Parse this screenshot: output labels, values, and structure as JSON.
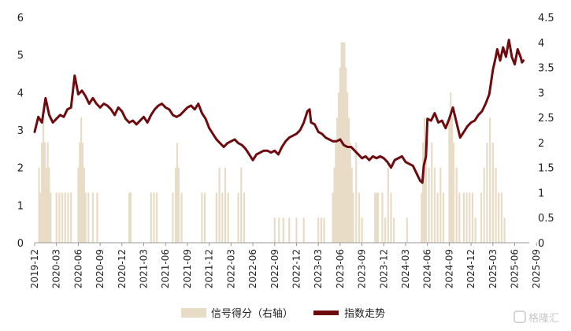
{
  "chart_data": {
    "type": "bar+line",
    "title": "",
    "x_categories": [
      "2019-12",
      "2020-03",
      "2020-06",
      "2020-09",
      "2020-12",
      "2021-03",
      "2021-06",
      "2021-09",
      "2021-12",
      "2022-03",
      "2022-06",
      "2022-09",
      "2022-12",
      "2023-03",
      "2023-06",
      "2023-09",
      "2023-12",
      "2024-03",
      "2024-06",
      "2024-09",
      "2024-12",
      "2025-03",
      "2025-06",
      "2025-09"
    ],
    "left_axis": {
      "ticks": [
        "0",
        "1",
        "2",
        "3",
        "4",
        "5",
        "6"
      ],
      "range": [
        0,
        6
      ]
    },
    "right_axis": {
      "ticks": [
        "0",
        "0.5",
        "1",
        "1.5",
        "2",
        "2.5",
        "3",
        "3.5",
        "4",
        "4.5"
      ],
      "range": [
        0,
        4.5
      ]
    },
    "series": [
      {
        "name": "信号得分（右轴）",
        "type": "bar",
        "axis": "right",
        "color": "#e8dcc6",
        "t_unit": "months since 2019-12",
        "points": [
          [
            0.6,
            1.5
          ],
          [
            0.8,
            1.0
          ],
          [
            1.0,
            2.0
          ],
          [
            1.2,
            2.5
          ],
          [
            1.4,
            2.0
          ],
          [
            1.6,
            1.5
          ],
          [
            1.8,
            2.0
          ],
          [
            2.0,
            1.5
          ],
          [
            2.2,
            1.0
          ],
          [
            3.0,
            1.0
          ],
          [
            3.4,
            1.0
          ],
          [
            3.8,
            1.0
          ],
          [
            4.2,
            1.0
          ],
          [
            4.6,
            1.0
          ],
          [
            5.0,
            1.0
          ],
          [
            6.0,
            1.5
          ],
          [
            6.2,
            2.0
          ],
          [
            6.4,
            2.5
          ],
          [
            6.6,
            2.0
          ],
          [
            6.8,
            1.5
          ],
          [
            7.0,
            1.0
          ],
          [
            7.4,
            1.0
          ],
          [
            8.0,
            1.0
          ],
          [
            8.6,
            1.0
          ],
          [
            13.0,
            1.0
          ],
          [
            13.2,
            1.0
          ],
          [
            16.0,
            1.0
          ],
          [
            16.4,
            1.0
          ],
          [
            16.8,
            1.0
          ],
          [
            19.0,
            1.0
          ],
          [
            19.4,
            1.5
          ],
          [
            19.6,
            2.0
          ],
          [
            19.8,
            1.5
          ],
          [
            20.2,
            1.0
          ],
          [
            23.0,
            1.0
          ],
          [
            23.4,
            1.0
          ],
          [
            25.0,
            1.0
          ],
          [
            25.4,
            1.5
          ],
          [
            25.8,
            1.0
          ],
          [
            26.2,
            1.5
          ],
          [
            26.6,
            1.0
          ],
          [
            28.0,
            1.0
          ],
          [
            28.4,
            1.5
          ],
          [
            28.8,
            1.0
          ],
          [
            33.0,
            0.5
          ],
          [
            33.6,
            0.5
          ],
          [
            34.2,
            0.5
          ],
          [
            35.0,
            0.5
          ],
          [
            36.0,
            0.5
          ],
          [
            37.0,
            0.5
          ],
          [
            39.0,
            0.5
          ],
          [
            39.4,
            0.5
          ],
          [
            39.8,
            0.5
          ],
          [
            41.0,
            1.0
          ],
          [
            41.2,
            1.5
          ],
          [
            41.4,
            2.0
          ],
          [
            41.6,
            2.5
          ],
          [
            41.8,
            3.0
          ],
          [
            42.0,
            3.5
          ],
          [
            42.2,
            4.0
          ],
          [
            42.4,
            4.0
          ],
          [
            42.6,
            4.0
          ],
          [
            42.8,
            3.5
          ],
          [
            43.0,
            3.0
          ],
          [
            43.2,
            2.5
          ],
          [
            43.4,
            2.0
          ],
          [
            43.6,
            1.5
          ],
          [
            43.8,
            1.0
          ],
          [
            44.2,
            2.0
          ],
          [
            44.6,
            1.0
          ],
          [
            45.0,
            0.5
          ],
          [
            46.8,
            1.0
          ],
          [
            47.0,
            1.0
          ],
          [
            47.2,
            1.0
          ],
          [
            47.8,
            1.0
          ],
          [
            48.2,
            0.5
          ],
          [
            48.6,
            1.5
          ],
          [
            49.0,
            1.0
          ],
          [
            49.4,
            0.5
          ],
          [
            51.2,
            0.5
          ],
          [
            53.2,
            1.0
          ],
          [
            53.4,
            2.0
          ],
          [
            53.6,
            2.5
          ],
          [
            53.8,
            2.0
          ],
          [
            54.2,
            1.5
          ],
          [
            54.6,
            2.0
          ],
          [
            55.0,
            1.5
          ],
          [
            55.4,
            1.0
          ],
          [
            55.8,
            1.5
          ],
          [
            56.2,
            1.0
          ],
          [
            57.0,
            2.5
          ],
          [
            57.2,
            3.0
          ],
          [
            57.4,
            2.5
          ],
          [
            57.6,
            2.0
          ],
          [
            58.0,
            1.5
          ],
          [
            58.4,
            1.0
          ],
          [
            59.0,
            1.0
          ],
          [
            59.4,
            1.0
          ],
          [
            59.8,
            1.0
          ],
          [
            60.2,
            1.0
          ],
          [
            60.6,
            0.5
          ],
          [
            61.4,
            1.0
          ],
          [
            61.8,
            1.5
          ],
          [
            62.2,
            2.0
          ],
          [
            62.6,
            2.5
          ],
          [
            63.0,
            2.0
          ],
          [
            63.4,
            1.5
          ],
          [
            63.8,
            1.0
          ],
          [
            64.2,
            1.0
          ],
          [
            64.6,
            0.5
          ]
        ]
      },
      {
        "name": "指数走势",
        "type": "line",
        "axis": "left",
        "color": "#6e0b0e",
        "t_unit": "months since 2019-12",
        "points": [
          [
            0,
            2.95
          ],
          [
            0.5,
            3.35
          ],
          [
            1.0,
            3.2
          ],
          [
            1.5,
            3.85
          ],
          [
            2.0,
            3.4
          ],
          [
            2.5,
            3.2
          ],
          [
            3.0,
            3.3
          ],
          [
            3.5,
            3.4
          ],
          [
            4.0,
            3.35
          ],
          [
            4.5,
            3.55
          ],
          [
            5.0,
            3.6
          ],
          [
            5.5,
            4.45
          ],
          [
            6.0,
            3.95
          ],
          [
            6.5,
            4.05
          ],
          [
            7.0,
            3.9
          ],
          [
            7.5,
            3.7
          ],
          [
            8.0,
            3.85
          ],
          [
            8.5,
            3.7
          ],
          [
            9.0,
            3.6
          ],
          [
            9.5,
            3.7
          ],
          [
            10.0,
            3.65
          ],
          [
            10.5,
            3.55
          ],
          [
            11.0,
            3.4
          ],
          [
            11.5,
            3.6
          ],
          [
            12.0,
            3.5
          ],
          [
            12.5,
            3.3
          ],
          [
            13.0,
            3.2
          ],
          [
            13.5,
            3.25
          ],
          [
            14.0,
            3.15
          ],
          [
            14.5,
            3.25
          ],
          [
            15.0,
            3.35
          ],
          [
            15.5,
            3.2
          ],
          [
            16.0,
            3.4
          ],
          [
            16.5,
            3.55
          ],
          [
            17.0,
            3.65
          ],
          [
            17.5,
            3.7
          ],
          [
            18.0,
            3.6
          ],
          [
            18.5,
            3.55
          ],
          [
            19.0,
            3.4
          ],
          [
            19.5,
            3.35
          ],
          [
            20.0,
            3.4
          ],
          [
            20.5,
            3.5
          ],
          [
            21.0,
            3.6
          ],
          [
            21.5,
            3.65
          ],
          [
            22.0,
            3.55
          ],
          [
            22.5,
            3.7
          ],
          [
            23.0,
            3.45
          ],
          [
            23.5,
            3.3
          ],
          [
            24.0,
            3.05
          ],
          [
            24.5,
            2.9
          ],
          [
            25.0,
            2.75
          ],
          [
            25.5,
            2.65
          ],
          [
            26.0,
            2.55
          ],
          [
            26.5,
            2.65
          ],
          [
            27.0,
            2.7
          ],
          [
            27.5,
            2.75
          ],
          [
            28.0,
            2.65
          ],
          [
            28.5,
            2.6
          ],
          [
            29.0,
            2.5
          ],
          [
            29.5,
            2.35
          ],
          [
            30.0,
            2.2
          ],
          [
            30.5,
            2.35
          ],
          [
            31.0,
            2.4
          ],
          [
            31.5,
            2.45
          ],
          [
            32.0,
            2.45
          ],
          [
            32.5,
            2.4
          ],
          [
            33.0,
            2.45
          ],
          [
            33.5,
            2.35
          ],
          [
            34.0,
            2.55
          ],
          [
            34.5,
            2.7
          ],
          [
            35.0,
            2.8
          ],
          [
            35.5,
            2.85
          ],
          [
            36.0,
            2.9
          ],
          [
            36.5,
            3.0
          ],
          [
            37.0,
            3.2
          ],
          [
            37.5,
            3.5
          ],
          [
            37.8,
            3.55
          ],
          [
            38.0,
            3.2
          ],
          [
            38.5,
            3.15
          ],
          [
            39.0,
            2.95
          ],
          [
            39.5,
            2.9
          ],
          [
            40.0,
            2.8
          ],
          [
            40.5,
            2.75
          ],
          [
            41.0,
            2.7
          ],
          [
            41.5,
            2.7
          ],
          [
            42.0,
            2.75
          ],
          [
            42.5,
            2.6
          ],
          [
            43.0,
            2.55
          ],
          [
            43.5,
            2.55
          ],
          [
            44.0,
            2.45
          ],
          [
            44.5,
            2.35
          ],
          [
            45.0,
            2.25
          ],
          [
            45.5,
            2.3
          ],
          [
            46.0,
            2.2
          ],
          [
            46.5,
            2.3
          ],
          [
            47.0,
            2.25
          ],
          [
            47.5,
            2.3
          ],
          [
            48.0,
            2.25
          ],
          [
            48.5,
            2.15
          ],
          [
            49.0,
            2.0
          ],
          [
            49.5,
            2.2
          ],
          [
            50.0,
            2.25
          ],
          [
            50.5,
            2.3
          ],
          [
            51.0,
            2.15
          ],
          [
            51.5,
            2.1
          ],
          [
            52.0,
            2.05
          ],
          [
            52.5,
            1.85
          ],
          [
            53.0,
            1.65
          ],
          [
            53.3,
            1.6
          ],
          [
            53.5,
            2.05
          ],
          [
            53.8,
            2.3
          ],
          [
            54.0,
            3.3
          ],
          [
            54.5,
            3.25
          ],
          [
            55.0,
            3.45
          ],
          [
            55.5,
            3.2
          ],
          [
            56.0,
            3.25
          ],
          [
            56.5,
            3.05
          ],
          [
            57.0,
            3.3
          ],
          [
            57.5,
            3.6
          ],
          [
            58.0,
            3.2
          ],
          [
            58.5,
            2.8
          ],
          [
            59.0,
            2.95
          ],
          [
            59.5,
            3.1
          ],
          [
            60.0,
            3.2
          ],
          [
            60.5,
            3.25
          ],
          [
            61.0,
            3.4
          ],
          [
            61.5,
            3.5
          ],
          [
            62.0,
            3.7
          ],
          [
            62.5,
            3.95
          ],
          [
            63.0,
            4.6
          ],
          [
            63.4,
            4.95
          ],
          [
            63.6,
            5.15
          ],
          [
            64.0,
            4.85
          ],
          [
            64.4,
            5.2
          ],
          [
            64.8,
            4.95
          ],
          [
            65.2,
            5.4
          ],
          [
            65.6,
            4.95
          ],
          [
            66.0,
            4.75
          ],
          [
            66.4,
            5.15
          ],
          [
            66.8,
            4.95
          ],
          [
            67.0,
            4.8
          ],
          [
            67.2,
            4.85
          ]
        ]
      }
    ],
    "legend": {
      "placement": "bottom-center"
    },
    "grid": false
  },
  "watermark": "格隆汇"
}
